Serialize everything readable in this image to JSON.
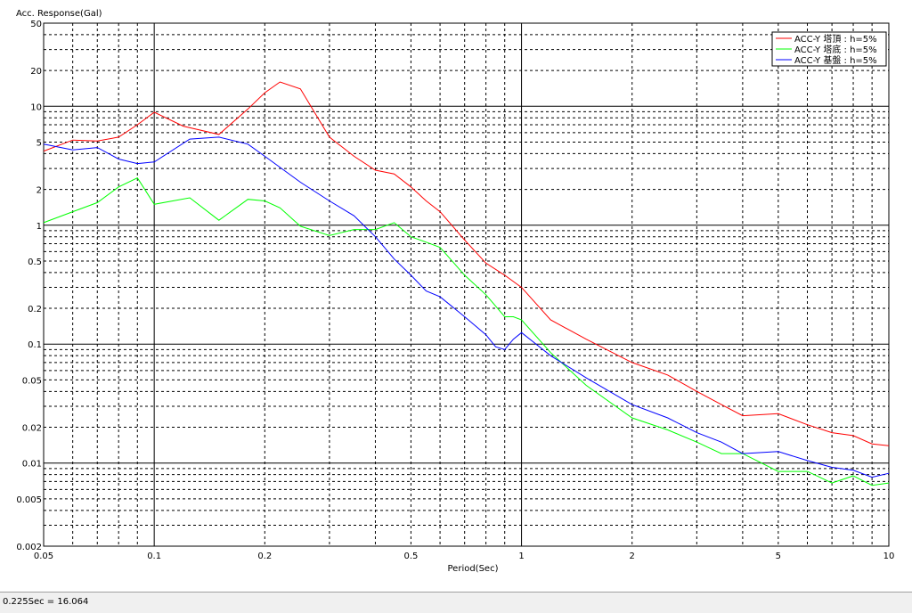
{
  "chart_data": {
    "type": "line",
    "title": "",
    "ylabel": "Acc. Response(Gal)",
    "xlabel": "Period(Sec)",
    "xscale": "log",
    "yscale": "log",
    "xlim": [
      0.05,
      10
    ],
    "ylim": [
      0.002,
      50
    ],
    "grid": true,
    "legend_position": "top-right",
    "x_tick_labels": [
      {
        "v": 0.05,
        "label": "0.05"
      },
      {
        "v": 0.1,
        "label": "0.1"
      },
      {
        "v": 0.2,
        "label": "0.2"
      },
      {
        "v": 0.5,
        "label": "0.5"
      },
      {
        "v": 1,
        "label": "1"
      },
      {
        "v": 2,
        "label": "2"
      },
      {
        "v": 5,
        "label": "5"
      },
      {
        "v": 10,
        "label": "10"
      }
    ],
    "y_tick_labels": [
      {
        "v": 0.002,
        "label": "0.002"
      },
      {
        "v": 0.005,
        "label": "0.005"
      },
      {
        "v": 0.01,
        "label": "0.01"
      },
      {
        "v": 0.02,
        "label": "0.02"
      },
      {
        "v": 0.05,
        "label": "0.05"
      },
      {
        "v": 0.1,
        "label": "0.1"
      },
      {
        "v": 0.2,
        "label": "0.2"
      },
      {
        "v": 0.5,
        "label": "0.5"
      },
      {
        "v": 1,
        "label": "1"
      },
      {
        "v": 2,
        "label": "2"
      },
      {
        "v": 5,
        "label": "5"
      },
      {
        "v": 10,
        "label": "10"
      },
      {
        "v": 20,
        "label": "20"
      },
      {
        "v": 50,
        "label": "50"
      }
    ],
    "series": [
      {
        "name": "ACC-Y 塔頂 : h=5%",
        "color": "#ff0000",
        "x": [
          0.05,
          0.06,
          0.07,
          0.08,
          0.09,
          0.1,
          0.12,
          0.15,
          0.18,
          0.2,
          0.22,
          0.25,
          0.3,
          0.35,
          0.4,
          0.45,
          0.5,
          0.55,
          0.6,
          0.7,
          0.8,
          0.9,
          1.0,
          1.2,
          1.5,
          2,
          2.5,
          3,
          3.5,
          4,
          5,
          6,
          7,
          8,
          9,
          10
        ],
        "y": [
          4.2,
          5.2,
          5.1,
          5.5,
          7.0,
          8.9,
          6.8,
          5.8,
          9.5,
          13.0,
          16.0,
          14.0,
          5.5,
          3.8,
          2.9,
          2.7,
          2.1,
          1.6,
          1.3,
          0.75,
          0.48,
          0.38,
          0.3,
          0.16,
          0.11,
          0.07,
          0.055,
          0.04,
          0.031,
          0.025,
          0.026,
          0.021,
          0.018,
          0.017,
          0.0145,
          0.014
        ]
      },
      {
        "name": "ACC-Y 塔底 : h=5%",
        "color": "#00ff00",
        "x": [
          0.05,
          0.06,
          0.07,
          0.08,
          0.09,
          0.1,
          0.125,
          0.15,
          0.18,
          0.2,
          0.22,
          0.25,
          0.3,
          0.35,
          0.4,
          0.45,
          0.5,
          0.55,
          0.6,
          0.7,
          0.8,
          0.9,
          0.95,
          1.0,
          1.2,
          1.5,
          2,
          2.5,
          3,
          3.5,
          4,
          5,
          6,
          7,
          8,
          9,
          10
        ],
        "y": [
          1.05,
          1.3,
          1.55,
          2.1,
          2.5,
          1.5,
          1.7,
          1.1,
          1.65,
          1.6,
          1.4,
          0.98,
          0.82,
          0.92,
          0.92,
          1.05,
          0.8,
          0.72,
          0.65,
          0.38,
          0.26,
          0.17,
          0.17,
          0.16,
          0.085,
          0.045,
          0.024,
          0.019,
          0.015,
          0.012,
          0.012,
          0.0085,
          0.0085,
          0.0068,
          0.0078,
          0.0065,
          0.0068
        ]
      },
      {
        "name": "ACC-Y 基盤 : h=5%",
        "color": "#0000ff",
        "x": [
          0.05,
          0.06,
          0.07,
          0.08,
          0.09,
          0.1,
          0.125,
          0.15,
          0.18,
          0.2,
          0.25,
          0.3,
          0.35,
          0.4,
          0.45,
          0.5,
          0.55,
          0.6,
          0.7,
          0.8,
          0.85,
          0.9,
          0.95,
          1.0,
          1.2,
          1.5,
          2,
          2.5,
          3,
          3.5,
          4,
          5,
          6,
          7,
          8,
          9,
          10
        ],
        "y": [
          4.8,
          4.3,
          4.5,
          3.6,
          3.3,
          3.4,
          5.3,
          5.5,
          4.8,
          3.8,
          2.3,
          1.6,
          1.2,
          0.8,
          0.52,
          0.38,
          0.28,
          0.25,
          0.17,
          0.12,
          0.095,
          0.09,
          0.11,
          0.125,
          0.08,
          0.052,
          0.031,
          0.024,
          0.018,
          0.015,
          0.012,
          0.0125,
          0.0105,
          0.0092,
          0.0087,
          0.0076,
          0.0082
        ]
      }
    ]
  },
  "status": {
    "readout": "0.225Sec = 16.064"
  }
}
